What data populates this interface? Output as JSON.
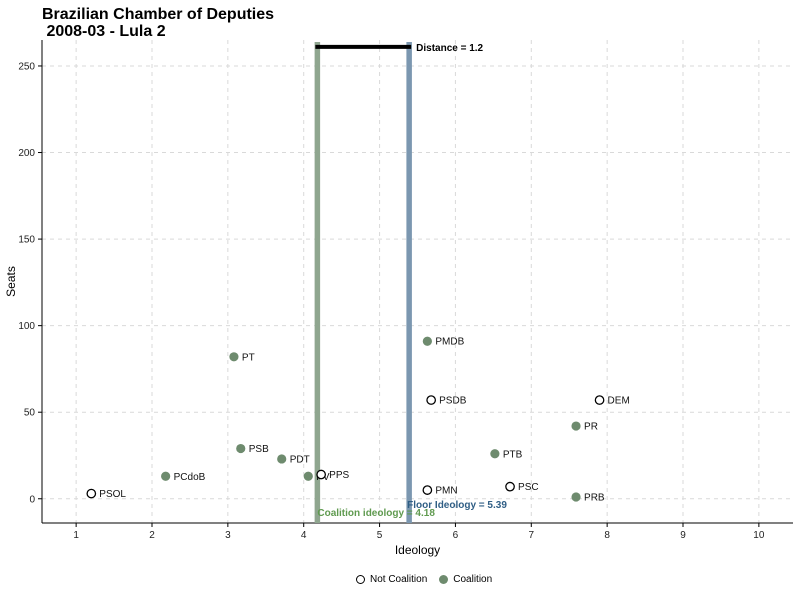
{
  "chart_data": {
    "type": "scatter",
    "title": "Brazilian Chamber of Deputies\n 2008-03 - Lula 2",
    "xlabel": "Ideology",
    "ylabel": "Seats",
    "xlim": [
      0.55,
      10.45
    ],
    "ylim": [
      -14,
      265
    ],
    "x_ticks": [
      1,
      2,
      3,
      4,
      5,
      6,
      7,
      8,
      9,
      10
    ],
    "y_ticks": [
      0,
      50,
      100,
      150,
      200,
      250
    ],
    "grid": true,
    "colors": {
      "coalition": "#6e8b6e",
      "coalition_line": "#8fa68f",
      "floor_line": "#7b97b0",
      "coalition_label": "#5f9a4f",
      "floor_label": "#2f5e85"
    },
    "parties": [
      {
        "name": "PSOL",
        "x": 1.2,
        "y": 3,
        "coalition": false
      },
      {
        "name": "PCdoB",
        "x": 2.18,
        "y": 13,
        "coalition": true
      },
      {
        "name": "PT",
        "x": 3.08,
        "y": 82,
        "coalition": true
      },
      {
        "name": "PSB",
        "x": 3.17,
        "y": 29,
        "coalition": true
      },
      {
        "name": "PDT",
        "x": 3.71,
        "y": 23,
        "coalition": true
      },
      {
        "name": "PV",
        "x": 4.06,
        "y": 13,
        "coalition": true
      },
      {
        "name": "PPS",
        "x": 4.23,
        "y": 14,
        "coalition": false
      },
      {
        "name": "PMDB",
        "x": 5.63,
        "y": 91,
        "coalition": true
      },
      {
        "name": "PSDB",
        "x": 5.68,
        "y": 57,
        "coalition": false
      },
      {
        "name": "PMN",
        "x": 5.63,
        "y": 5,
        "coalition": false
      },
      {
        "name": "PTB",
        "x": 6.52,
        "y": 26,
        "coalition": true
      },
      {
        "name": "PSC",
        "x": 6.72,
        "y": 7,
        "coalition": false
      },
      {
        "name": "PR",
        "x": 7.59,
        "y": 42,
        "coalition": true
      },
      {
        "name": "PRB",
        "x": 7.59,
        "y": 1,
        "coalition": true
      },
      {
        "name": "DEM",
        "x": 7.9,
        "y": 57,
        "coalition": false
      }
    ],
    "coalition_ideology": 4.18,
    "floor_ideology": 5.39,
    "distance": 1.2,
    "annotations": {
      "coalition_label": "Coalition ideology = 4.18",
      "floor_label": "Floor Ideology = 5.39",
      "distance_label": "Distance = 1.2"
    },
    "legend": [
      "Not Coalition",
      "Coalition"
    ],
    "legend_position": "bottom"
  }
}
